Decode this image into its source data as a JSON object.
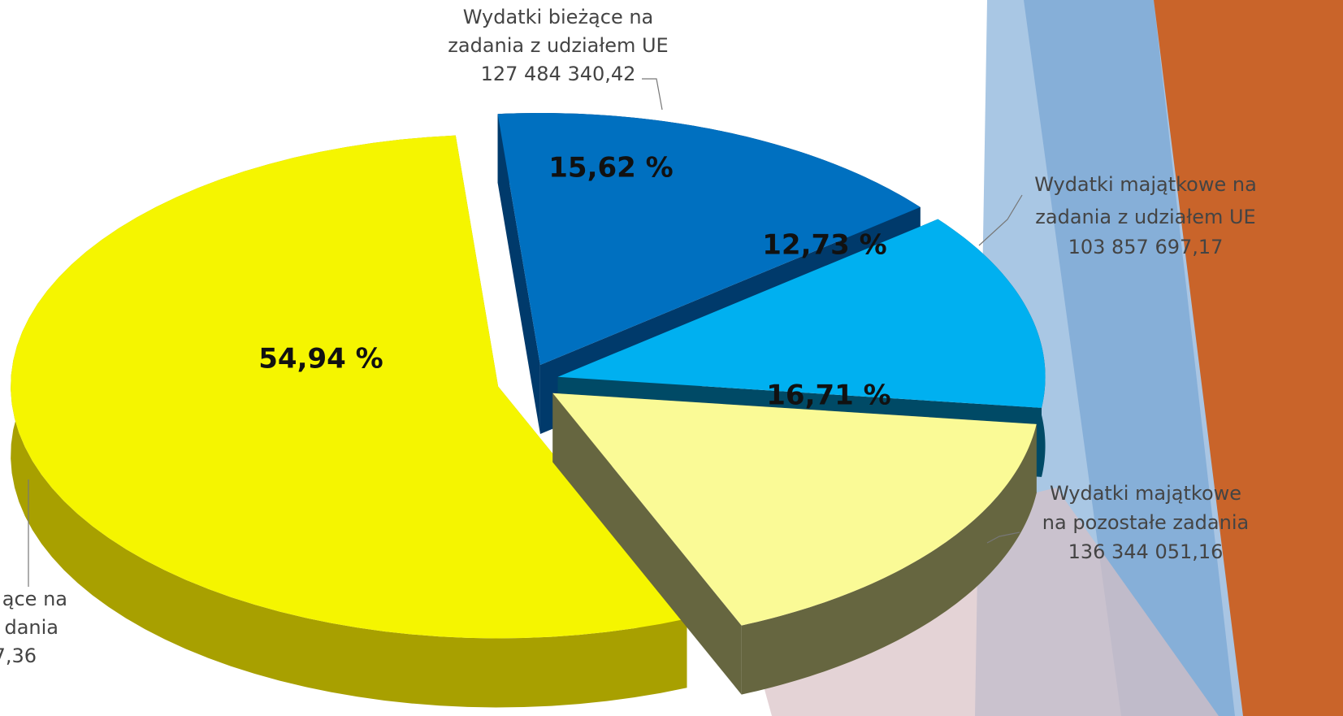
{
  "chart_data": {
    "type": "pie3d",
    "categories": [
      [
        "Wydatki bieżące na",
        "zadania z udziałem UE",
        "127 484 340,42"
      ],
      [
        "Wydatki majątkowe na",
        "zadania z udziałem UE",
        "103 857 697,17"
      ],
      [
        "Wydatki majątkowe",
        "na pozostałe zadania",
        "136 344 051,16"
      ],
      [
        "ące na",
        "dania",
        "7,36"
      ]
    ],
    "values": [
      15.62,
      12.73,
      16.71,
      54.94
    ],
    "value_labels": [
      "15,62 %",
      "12,73 %",
      "16,71 %",
      "54,94 %"
    ],
    "colors": [
      "#0070c0",
      "#00b0f0",
      "#fafa96",
      "#f5f500"
    ],
    "side_colors": [
      "#003a6b",
      "#004a66",
      "#666640",
      "#a8a000"
    ]
  }
}
